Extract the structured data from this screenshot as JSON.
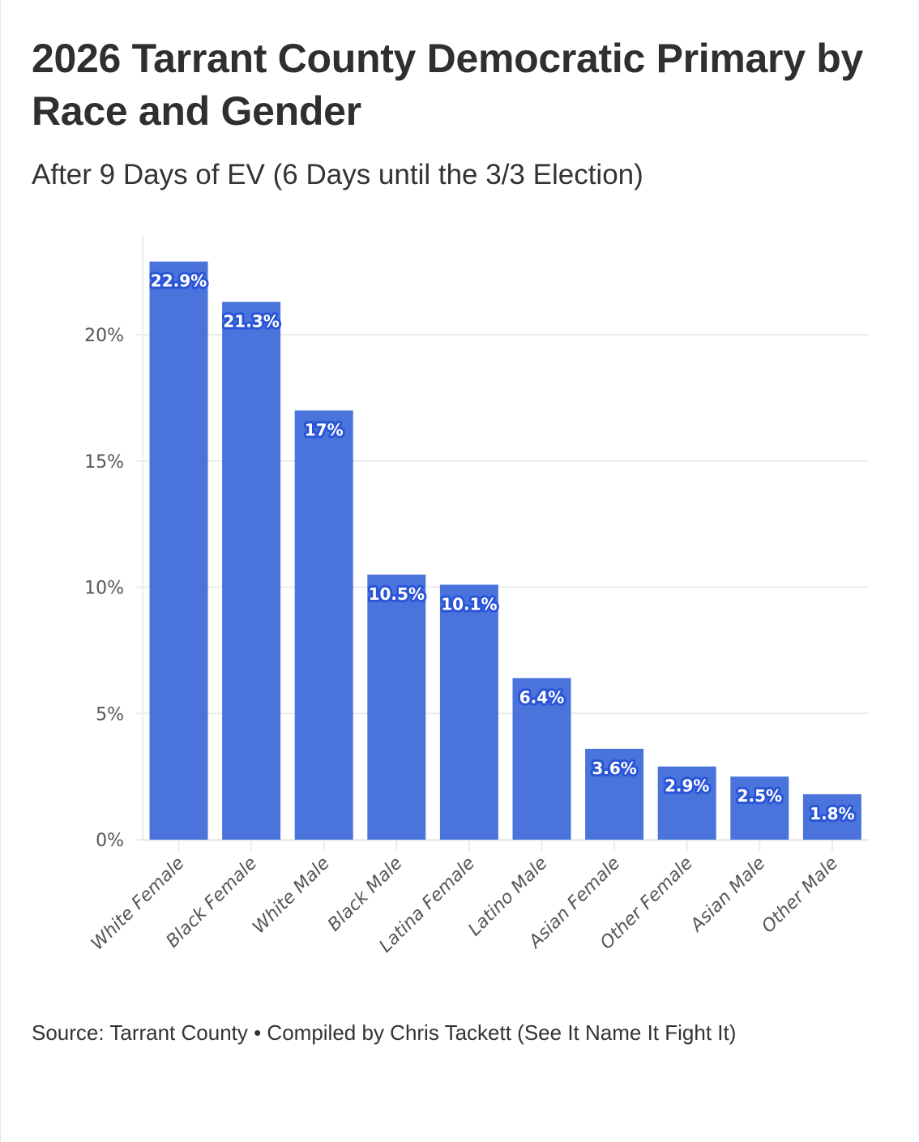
{
  "chart_data": {
    "type": "bar",
    "title": "2026 Tarrant County Democratic Primary by Race and Gender",
    "subtitle": "After 9 Days of EV (6 Days until the 3/3 Election)",
    "source": "Source: Tarrant County • Compiled by Chris Tackett (See It Name It Fight It)",
    "xlabel": "",
    "ylabel": "",
    "categories": [
      "White Female",
      "Black Female",
      "White Male",
      "Black Male",
      "Latina Female",
      "Latino Male",
      "Asian Female",
      "Other Female",
      "Asian Male",
      "Other Male"
    ],
    "values": [
      22.9,
      21.3,
      17,
      10.5,
      10.1,
      6.4,
      3.6,
      2.9,
      2.5,
      1.8
    ],
    "data_labels": [
      "22.9%",
      "21.3%",
      "17%",
      "10.5%",
      "10.1%",
      "6.4%",
      "3.6%",
      "2.9%",
      "2.5%",
      "1.8%"
    ],
    "ylim": [
      0,
      23.5
    ],
    "yticks": [
      0,
      5,
      10,
      15,
      20
    ],
    "ytick_labels": [
      "0%",
      "5%",
      "10%",
      "15%",
      "20%"
    ],
    "grid": "horizontal",
    "legend": "none",
    "colors": {
      "bar": "#4a74dc",
      "label_halo": "#2a55d6",
      "label_text": "#ffffff",
      "grid": "#ebebeb",
      "tick_text": "#555555"
    }
  }
}
